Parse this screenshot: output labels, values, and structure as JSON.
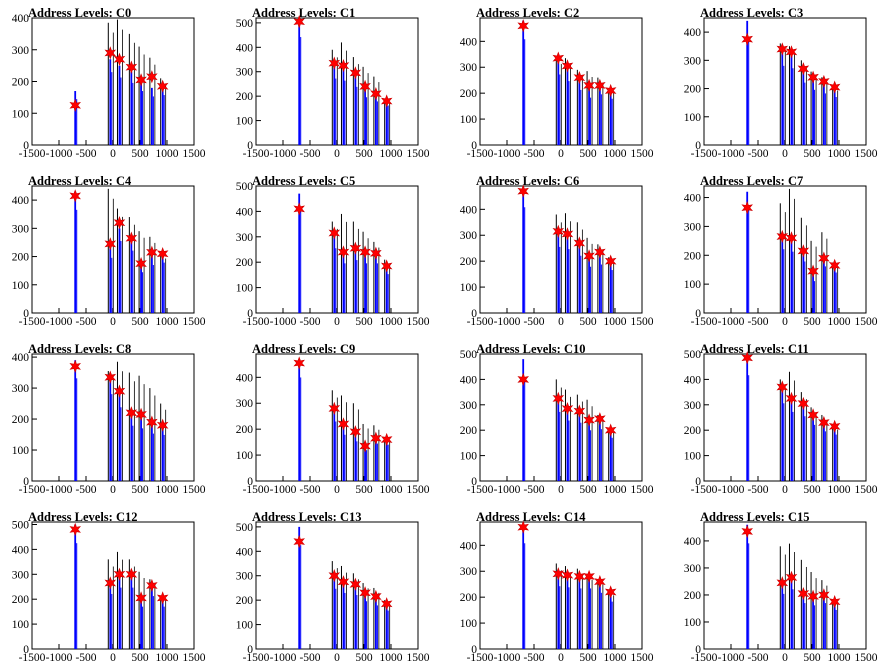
{
  "chart_data": [
    {
      "type": "bar",
      "title": "Address Levels: C0",
      "xlim": [
        -1500,
        1500
      ],
      "ylim": [
        0,
        400
      ],
      "yticks": [
        0,
        100,
        200,
        300,
        400
      ],
      "xticks": [
        -1500,
        -1000,
        -500,
        0,
        500,
        1000,
        1500
      ],
      "peaks": [
        {
          "x": -700,
          "black": 0,
          "blue": 170,
          "marker": 125
        },
        {
          "x": -50,
          "black": 385,
          "blue": 270,
          "marker": 290
        },
        {
          "x": 120,
          "black": 395,
          "blue": 250,
          "marker": 270
        },
        {
          "x": 340,
          "black": 350,
          "blue": 230,
          "marker": 245
        },
        {
          "x": 520,
          "black": 310,
          "blue": 200,
          "marker": 205
        },
        {
          "x": 720,
          "black": 275,
          "blue": 180,
          "marker": 215
        },
        {
          "x": 920,
          "black": 210,
          "blue": 185,
          "marker": 185
        }
      ]
    },
    {
      "type": "bar",
      "title": "Address Levels: C1",
      "xlim": [
        -1500,
        1500
      ],
      "ylim": [
        0,
        520
      ],
      "yticks": [
        0,
        100,
        200,
        300,
        400,
        500
      ],
      "xticks": [
        -1500,
        -1000,
        -500,
        0,
        500,
        1000,
        1500
      ],
      "peaks": [
        {
          "x": -700,
          "black": 0,
          "blue": 520,
          "marker": 505
        },
        {
          "x": -50,
          "black": 390,
          "blue": 320,
          "marker": 335
        },
        {
          "x": 120,
          "black": 420,
          "blue": 310,
          "marker": 325
        },
        {
          "x": 340,
          "black": 360,
          "blue": 280,
          "marker": 295
        },
        {
          "x": 520,
          "black": 320,
          "blue": 230,
          "marker": 240
        },
        {
          "x": 720,
          "black": 280,
          "blue": 210,
          "marker": 210
        },
        {
          "x": 920,
          "black": 190,
          "blue": 190,
          "marker": 180
        }
      ]
    },
    {
      "type": "bar",
      "title": "Address Levels: C2",
      "xlim": [
        -1500,
        1500
      ],
      "ylim": [
        0,
        490
      ],
      "yticks": [
        0,
        100,
        200,
        300,
        400
      ],
      "xticks": [
        -1500,
        -1000,
        -500,
        0,
        500,
        1000,
        1500
      ],
      "peaks": [
        {
          "x": -700,
          "black": 0,
          "blue": 480,
          "marker": 460
        },
        {
          "x": -50,
          "black": 340,
          "blue": 320,
          "marker": 335
        },
        {
          "x": 120,
          "black": 335,
          "blue": 290,
          "marker": 305
        },
        {
          "x": 340,
          "black": 290,
          "blue": 250,
          "marker": 260
        },
        {
          "x": 520,
          "black": 285,
          "blue": 215,
          "marker": 230
        },
        {
          "x": 720,
          "black": 260,
          "blue": 230,
          "marker": 230
        },
        {
          "x": 920,
          "black": 220,
          "blue": 210,
          "marker": 210
        }
      ]
    },
    {
      "type": "bar",
      "title": "Address Levels: C3",
      "xlim": [
        -1500,
        1500
      ],
      "ylim": [
        0,
        450
      ],
      "yticks": [
        0,
        100,
        200,
        300,
        400
      ],
      "xticks": [
        -1500,
        -1000,
        -500,
        0,
        500,
        1000,
        1500
      ],
      "peaks": [
        {
          "x": -700,
          "black": 0,
          "blue": 440,
          "marker": 375
        },
        {
          "x": -50,
          "black": 360,
          "blue": 330,
          "marker": 340
        },
        {
          "x": 120,
          "black": 350,
          "blue": 320,
          "marker": 330
        },
        {
          "x": 340,
          "black": 300,
          "blue": 260,
          "marker": 270
        },
        {
          "x": 520,
          "black": 260,
          "blue": 230,
          "marker": 240
        },
        {
          "x": 720,
          "black": 240,
          "blue": 215,
          "marker": 225
        },
        {
          "x": 920,
          "black": 210,
          "blue": 200,
          "marker": 205
        }
      ]
    },
    {
      "type": "bar",
      "title": "Address Levels: C4",
      "xlim": [
        -1500,
        1500
      ],
      "ylim": [
        0,
        450
      ],
      "yticks": [
        0,
        100,
        200,
        300,
        400
      ],
      "xticks": [
        -1500,
        -1000,
        -500,
        0,
        500,
        1000,
        1500
      ],
      "peaks": [
        {
          "x": -700,
          "black": 0,
          "blue": 430,
          "marker": 415
        },
        {
          "x": -50,
          "black": 440,
          "blue": 230,
          "marker": 245
        },
        {
          "x": 120,
          "black": 370,
          "blue": 300,
          "marker": 320
        },
        {
          "x": 340,
          "black": 340,
          "blue": 260,
          "marker": 265
        },
        {
          "x": 520,
          "black": 290,
          "blue": 170,
          "marker": 175
        },
        {
          "x": 720,
          "black": 270,
          "blue": 200,
          "marker": 215
        },
        {
          "x": 920,
          "black": 210,
          "blue": 210,
          "marker": 210
        }
      ]
    },
    {
      "type": "bar",
      "title": "Address Levels: C5",
      "xlim": [
        -1500,
        1500
      ],
      "ylim": [
        0,
        500
      ],
      "yticks": [
        0,
        100,
        200,
        300,
        400,
        500
      ],
      "xticks": [
        -1500,
        -1000,
        -500,
        0,
        500,
        1000,
        1500
      ],
      "peaks": [
        {
          "x": -700,
          "black": 0,
          "blue": 470,
          "marker": 410
        },
        {
          "x": -50,
          "black": 360,
          "blue": 300,
          "marker": 315
        },
        {
          "x": 120,
          "black": 390,
          "blue": 230,
          "marker": 240
        },
        {
          "x": 340,
          "black": 360,
          "blue": 245,
          "marker": 255
        },
        {
          "x": 520,
          "black": 320,
          "blue": 230,
          "marker": 240
        },
        {
          "x": 720,
          "black": 280,
          "blue": 230,
          "marker": 235
        },
        {
          "x": 920,
          "black": 210,
          "blue": 180,
          "marker": 185
        }
      ]
    },
    {
      "type": "bar",
      "title": "Address Levels: C6",
      "xlim": [
        -1500,
        1500
      ],
      "ylim": [
        0,
        490
      ],
      "yticks": [
        0,
        100,
        200,
        300,
        400
      ],
      "xticks": [
        -1500,
        -1000,
        -500,
        0,
        500,
        1000,
        1500
      ],
      "peaks": [
        {
          "x": -700,
          "black": 0,
          "blue": 480,
          "marker": 470
        },
        {
          "x": -50,
          "black": 380,
          "blue": 300,
          "marker": 315
        },
        {
          "x": 120,
          "black": 385,
          "blue": 290,
          "marker": 305
        },
        {
          "x": 340,
          "black": 350,
          "blue": 260,
          "marker": 270
        },
        {
          "x": 520,
          "black": 290,
          "blue": 210,
          "marker": 220
        },
        {
          "x": 720,
          "black": 265,
          "blue": 220,
          "marker": 235
        },
        {
          "x": 920,
          "black": 215,
          "blue": 195,
          "marker": 200
        }
      ]
    },
    {
      "type": "bar",
      "title": "Address Levels: C7",
      "xlim": [
        -1500,
        1500
      ],
      "ylim": [
        0,
        440
      ],
      "yticks": [
        0,
        100,
        200,
        300,
        400
      ],
      "xticks": [
        -1500,
        -1000,
        -500,
        0,
        500,
        1000,
        1500
      ],
      "peaks": [
        {
          "x": -700,
          "black": 0,
          "blue": 420,
          "marker": 365
        },
        {
          "x": -50,
          "black": 380,
          "blue": 260,
          "marker": 265
        },
        {
          "x": 120,
          "black": 430,
          "blue": 250,
          "marker": 260
        },
        {
          "x": 340,
          "black": 330,
          "blue": 210,
          "marker": 215
        },
        {
          "x": 520,
          "black": 250,
          "blue": 130,
          "marker": 145
        },
        {
          "x": 720,
          "black": 280,
          "blue": 190,
          "marker": 190
        },
        {
          "x": 920,
          "black": 175,
          "blue": 165,
          "marker": 165
        }
      ]
    },
    {
      "type": "bar",
      "title": "Address Levels: C8",
      "xlim": [
        -1500,
        1500
      ],
      "ylim": [
        0,
        410
      ],
      "yticks": [
        0,
        100,
        200,
        300,
        400
      ],
      "xticks": [
        -1500,
        -1000,
        -500,
        0,
        500,
        1000,
        1500
      ],
      "peaks": [
        {
          "x": -700,
          "black": 0,
          "blue": 390,
          "marker": 370
        },
        {
          "x": -50,
          "black": 355,
          "blue": 330,
          "marker": 335
        },
        {
          "x": 120,
          "black": 385,
          "blue": 280,
          "marker": 290
        },
        {
          "x": 340,
          "black": 350,
          "blue": 210,
          "marker": 220
        },
        {
          "x": 520,
          "black": 340,
          "blue": 200,
          "marker": 215
        },
        {
          "x": 720,
          "black": 300,
          "blue": 180,
          "marker": 190
        },
        {
          "x": 920,
          "black": 250,
          "blue": 175,
          "marker": 180
        }
      ]
    },
    {
      "type": "bar",
      "title": "Address Levels: C9",
      "xlim": [
        -1500,
        1500
      ],
      "ylim": [
        0,
        490
      ],
      "yticks": [
        0,
        100,
        200,
        300,
        400
      ],
      "xticks": [
        -1500,
        -1000,
        -500,
        0,
        500,
        1000,
        1500
      ],
      "peaks": [
        {
          "x": -700,
          "black": 0,
          "blue": 470,
          "marker": 455
        },
        {
          "x": -50,
          "black": 350,
          "blue": 270,
          "marker": 280
        },
        {
          "x": 120,
          "black": 330,
          "blue": 210,
          "marker": 220
        },
        {
          "x": 340,
          "black": 300,
          "blue": 180,
          "marker": 190
        },
        {
          "x": 520,
          "black": 220,
          "blue": 140,
          "marker": 135
        },
        {
          "x": 720,
          "black": 215,
          "blue": 170,
          "marker": 165
        },
        {
          "x": 920,
          "black": 170,
          "blue": 165,
          "marker": 160
        }
      ]
    },
    {
      "type": "bar",
      "title": "Address Levels: C10",
      "xlim": [
        -1500,
        1500
      ],
      "ylim": [
        0,
        500
      ],
      "yticks": [
        0,
        100,
        200,
        300,
        400,
        500
      ],
      "xticks": [
        -1500,
        -1000,
        -500,
        0,
        500,
        1000,
        1500
      ],
      "peaks": [
        {
          "x": -700,
          "black": 0,
          "blue": 480,
          "marker": 400
        },
        {
          "x": -50,
          "black": 400,
          "blue": 320,
          "marker": 325
        },
        {
          "x": 120,
          "black": 360,
          "blue": 280,
          "marker": 285
        },
        {
          "x": 340,
          "black": 340,
          "blue": 270,
          "marker": 275
        },
        {
          "x": 520,
          "black": 320,
          "blue": 235,
          "marker": 240
        },
        {
          "x": 720,
          "black": 260,
          "blue": 240,
          "marker": 245
        },
        {
          "x": 920,
          "black": 210,
          "blue": 200,
          "marker": 200
        }
      ]
    },
    {
      "type": "bar",
      "title": "Address Levels: C11",
      "xlim": [
        -1500,
        1500
      ],
      "ylim": [
        0,
        500
      ],
      "yticks": [
        0,
        100,
        200,
        300,
        400,
        500
      ],
      "xticks": [
        -1500,
        -1000,
        -500,
        0,
        500,
        1000,
        1500
      ],
      "peaks": [
        {
          "x": -700,
          "black": 0,
          "blue": 490,
          "marker": 485
        },
        {
          "x": -50,
          "black": 400,
          "blue": 360,
          "marker": 370
        },
        {
          "x": 120,
          "black": 430,
          "blue": 320,
          "marker": 325
        },
        {
          "x": 340,
          "black": 350,
          "blue": 300,
          "marker": 305
        },
        {
          "x": 520,
          "black": 290,
          "blue": 260,
          "marker": 260
        },
        {
          "x": 720,
          "black": 260,
          "blue": 230,
          "marker": 230
        },
        {
          "x": 920,
          "black": 220,
          "blue": 215,
          "marker": 215
        }
      ]
    },
    {
      "type": "bar",
      "title": "Address Levels: C12",
      "xlim": [
        -1500,
        1500
      ],
      "ylim": [
        0,
        510
      ],
      "yticks": [
        0,
        100,
        200,
        300,
        400,
        500
      ],
      "xticks": [
        -1500,
        -1000,
        -500,
        0,
        500,
        1000,
        1500
      ],
      "peaks": [
        {
          "x": -700,
          "black": 0,
          "blue": 500,
          "marker": 480
        },
        {
          "x": -50,
          "black": 360,
          "blue": 260,
          "marker": 265
        },
        {
          "x": 120,
          "black": 390,
          "blue": 290,
          "marker": 300
        },
        {
          "x": 340,
          "black": 360,
          "blue": 290,
          "marker": 300
        },
        {
          "x": 520,
          "black": 310,
          "blue": 200,
          "marker": 205
        },
        {
          "x": 720,
          "black": 280,
          "blue": 250,
          "marker": 255
        },
        {
          "x": 920,
          "black": 215,
          "blue": 200,
          "marker": 205
        }
      ]
    },
    {
      "type": "bar",
      "title": "Address Levels: C13",
      "xlim": [
        -1500,
        1500
      ],
      "ylim": [
        0,
        520
      ],
      "yticks": [
        0,
        100,
        200,
        300,
        400,
        500
      ],
      "xticks": [
        -1500,
        -1000,
        -500,
        0,
        500,
        1000,
        1500
      ],
      "peaks": [
        {
          "x": -700,
          "black": 0,
          "blue": 500,
          "marker": 440
        },
        {
          "x": -50,
          "black": 360,
          "blue": 290,
          "marker": 300
        },
        {
          "x": 120,
          "black": 340,
          "blue": 270,
          "marker": 275
        },
        {
          "x": 340,
          "black": 310,
          "blue": 260,
          "marker": 265
        },
        {
          "x": 520,
          "black": 270,
          "blue": 230,
          "marker": 230
        },
        {
          "x": 720,
          "black": 250,
          "blue": 210,
          "marker": 215
        },
        {
          "x": 920,
          "black": 200,
          "blue": 185,
          "marker": 185
        }
      ]
    },
    {
      "type": "bar",
      "title": "Address Levels: C14",
      "xlim": [
        -1500,
        1500
      ],
      "ylim": [
        0,
        490
      ],
      "yticks": [
        0,
        100,
        200,
        300,
        400
      ],
      "xticks": [
        -1500,
        -1000,
        -500,
        0,
        500,
        1000,
        1500
      ],
      "peaks": [
        {
          "x": -700,
          "black": 0,
          "blue": 480,
          "marker": 470
        },
        {
          "x": -50,
          "black": 330,
          "blue": 285,
          "marker": 290
        },
        {
          "x": 120,
          "black": 320,
          "blue": 280,
          "marker": 285
        },
        {
          "x": 340,
          "black": 310,
          "blue": 275,
          "marker": 280
        },
        {
          "x": 520,
          "black": 290,
          "blue": 275,
          "marker": 280
        },
        {
          "x": 720,
          "black": 270,
          "blue": 255,
          "marker": 260
        },
        {
          "x": 920,
          "black": 225,
          "blue": 215,
          "marker": 220
        }
      ]
    },
    {
      "type": "bar",
      "title": "Address Levels: C15",
      "xlim": [
        -1500,
        1500
      ],
      "ylim": [
        0,
        470
      ],
      "yticks": [
        0,
        100,
        200,
        300,
        400
      ],
      "xticks": [
        -1500,
        -1000,
        -500,
        0,
        500,
        1000,
        1500
      ],
      "peaks": [
        {
          "x": -700,
          "black": 0,
          "blue": 460,
          "marker": 435
        },
        {
          "x": -50,
          "black": 380,
          "blue": 240,
          "marker": 245
        },
        {
          "x": 120,
          "black": 390,
          "blue": 260,
          "marker": 265
        },
        {
          "x": 340,
          "black": 330,
          "blue": 200,
          "marker": 205
        },
        {
          "x": 520,
          "black": 285,
          "blue": 190,
          "marker": 195
        },
        {
          "x": 720,
          "black": 255,
          "blue": 200,
          "marker": 200
        },
        {
          "x": 920,
          "black": 180,
          "blue": 170,
          "marker": 175
        }
      ]
    }
  ],
  "colors": {
    "blue_series": "#0000ff",
    "black_series": "#000000",
    "marker": "#ff0000"
  }
}
